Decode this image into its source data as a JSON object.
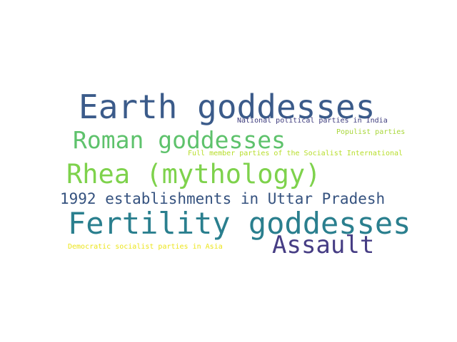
{
  "wordcloud": {
    "words": [
      {
        "key": "earth",
        "text": "Earth goddesses",
        "color": "#3b5b8a"
      },
      {
        "key": "roman",
        "text": "Roman goddesses",
        "color": "#5ec26c"
      },
      {
        "key": "rhea",
        "text": "Rhea (mythology)",
        "color": "#7ed24c"
      },
      {
        "key": "y1992",
        "text": "1992 establishments in Uttar Pradesh",
        "color": "#35527f"
      },
      {
        "key": "fertility",
        "text": "Fertility goddesses",
        "color": "#2a7f8e"
      },
      {
        "key": "assault",
        "text": "Assault",
        "color": "#463d84"
      },
      {
        "key": "national",
        "text": "National political parties in India",
        "color": "#3d3b7d"
      },
      {
        "key": "populist",
        "text": "Populist parties",
        "color": "#a9d73a"
      },
      {
        "key": "fullmember",
        "text": "Full member parties of the Socialist International",
        "color": "#b7de2a"
      },
      {
        "key": "democratic",
        "text": "Democratic socialist parties in Asia",
        "color": "#ece51b"
      }
    ]
  }
}
